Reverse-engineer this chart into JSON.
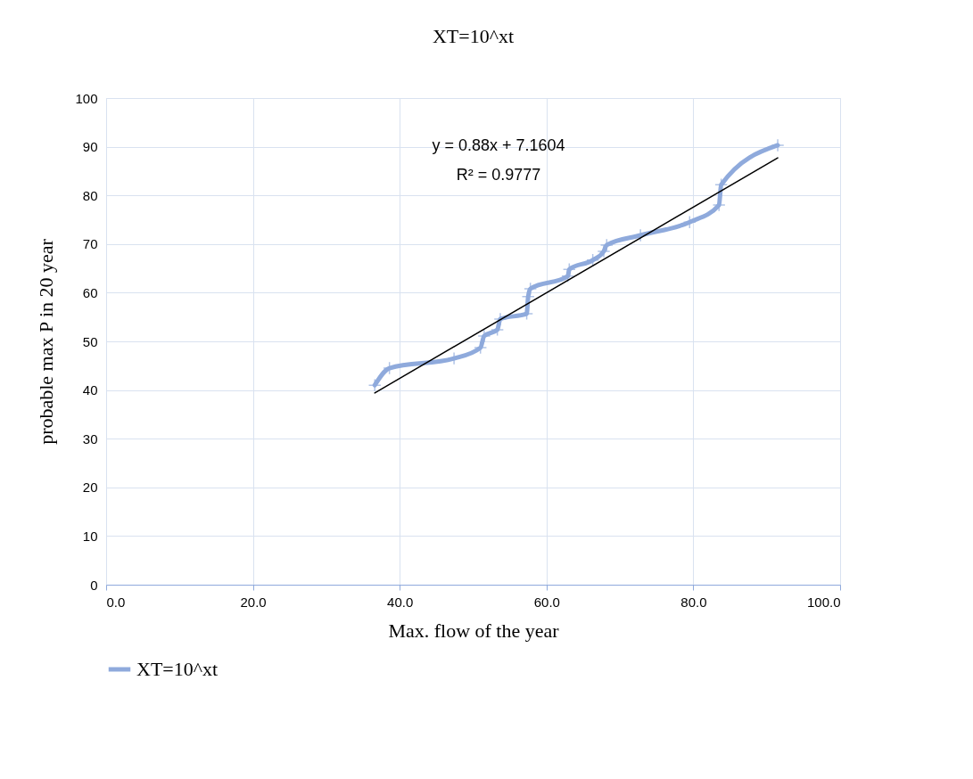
{
  "chart_data": {
    "type": "line",
    "title": "XT=10^xt",
    "xlabel": "Max. flow of the year",
    "ylabel": "probable max P in 20 year",
    "xlim": [
      0,
      100
    ],
    "xticks": [
      {
        "value": 0,
        "label": "0.0"
      },
      {
        "value": 20,
        "label": "20.0"
      },
      {
        "value": 40,
        "label": "40.0"
      },
      {
        "value": 60,
        "label": "60.0"
      },
      {
        "value": 80,
        "label": "80.0"
      },
      {
        "value": 100,
        "label": "100.0"
      }
    ],
    "ylim": [
      0,
      100
    ],
    "yticks": [
      0,
      10,
      20,
      30,
      40,
      50,
      60,
      70,
      80,
      90,
      100
    ],
    "grid": true,
    "legend": "bottom",
    "marker": "cross",
    "annotations": [
      "y = 0.88x + 7.1604",
      "R² = 0.9777"
    ],
    "series": [
      {
        "name": "XT=10^xt",
        "color": "#8faadc",
        "x": [
          36.6,
          38.6,
          47.4,
          51.0,
          51.5,
          53.3,
          53.7,
          57.3,
          57.5,
          57.8,
          62.9,
          63.1,
          66.3,
          67.8,
          68.2,
          72.8,
          79.5,
          83.5,
          83.8,
          91.5
        ],
        "values": [
          41.0,
          44.5,
          46.5,
          48.7,
          51.1,
          52.4,
          54.6,
          55.7,
          59.2,
          60.8,
          63.4,
          64.8,
          66.7,
          68.5,
          69.8,
          71.8,
          74.5,
          78.0,
          82.2,
          90.3
        ]
      },
      {
        "type": "line",
        "color": "#000000",
        "marker": "none",
        "x": [
          36.6,
          91.5
        ],
        "values": [
          39.4,
          87.7
        ]
      }
    ]
  }
}
